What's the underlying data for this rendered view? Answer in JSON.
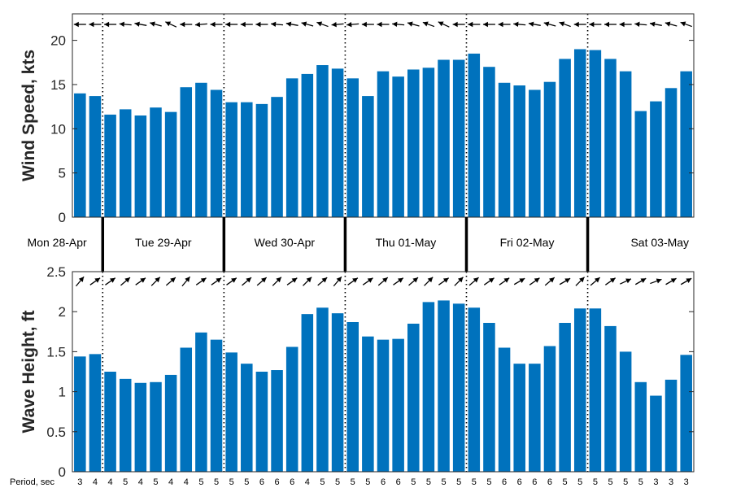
{
  "chart_data": [
    {
      "type": "bar",
      "ylabel": "Wind Speed, kts",
      "ylim": [
        0,
        23
      ],
      "yticks": [
        0,
        5,
        10,
        15,
        20
      ],
      "color": "#0072bd",
      "values": [
        14.0,
        13.7,
        11.6,
        12.2,
        11.5,
        12.4,
        11.9,
        14.7,
        15.2,
        14.4,
        13.0,
        13.0,
        12.8,
        13.6,
        15.7,
        16.2,
        17.2,
        16.8,
        15.7,
        13.7,
        16.5,
        15.9,
        16.7,
        16.9,
        17.8,
        17.8,
        18.5,
        17.0,
        15.2,
        14.9,
        14.4,
        15.3,
        17.9,
        19.0,
        18.9,
        17.9,
        16.5,
        12.0,
        13.1,
        14.6,
        16.5
      ],
      "direction_arrows_deg": [
        180,
        180,
        180,
        185,
        190,
        195,
        205,
        180,
        175,
        180,
        180,
        180,
        180,
        185,
        190,
        195,
        200,
        175,
        175,
        180,
        180,
        185,
        195,
        200,
        205,
        180,
        180,
        180,
        180,
        185,
        190,
        195,
        200,
        180,
        180,
        180,
        180,
        185,
        190,
        195,
        200
      ]
    },
    {
      "type": "bar",
      "ylabel": "Wave Height, ft",
      "ylim": [
        0,
        2.5
      ],
      "yticks": [
        "0",
        "0.5",
        "1",
        "1.5",
        "2",
        "2.5"
      ],
      "color": "#0072bd",
      "values": [
        1.44,
        1.47,
        1.25,
        1.16,
        1.11,
        1.12,
        1.21,
        1.55,
        1.74,
        1.65,
        1.49,
        1.35,
        1.25,
        1.27,
        1.56,
        1.97,
        2.05,
        1.98,
        1.87,
        1.69,
        1.65,
        1.66,
        1.85,
        2.12,
        2.14,
        2.1,
        2.05,
        1.86,
        1.55,
        1.35,
        1.35,
        1.57,
        1.86,
        2.04,
        2.04,
        1.82,
        1.5,
        1.12,
        0.95,
        1.15,
        1.46
      ],
      "direction_arrows_deg": [
        -50,
        -35,
        -35,
        -40,
        -35,
        -45,
        -40,
        -50,
        -35,
        -35,
        -35,
        -40,
        -40,
        -45,
        -35,
        -45,
        -40,
        -50,
        -35,
        -35,
        -40,
        -35,
        -40,
        -45,
        -35,
        -45,
        -40,
        -35,
        -35,
        -30,
        -35,
        -40,
        -30,
        -45,
        -40,
        -35,
        -25,
        -30,
        -20,
        -30,
        -30
      ],
      "period_label": "Period, sec",
      "periods": [
        "3",
        "4",
        "4",
        "5",
        "4",
        "5",
        "4",
        "4",
        "5",
        "5",
        "5",
        "5",
        "6",
        "6",
        "6",
        "4",
        "5",
        "5",
        "5",
        "5",
        "6",
        "6",
        "5",
        "5",
        "5",
        "5",
        "5",
        "5",
        "6",
        "6",
        "6",
        "6",
        "5",
        "5",
        "5",
        "5",
        "5",
        "5",
        "3",
        "3",
        "3"
      ]
    }
  ],
  "days": [
    "Mon 28-Apr",
    "Tue 29-Apr",
    "Wed 30-Apr",
    "Thu 01-May",
    "Fri 02-May",
    "Sat 03-May"
  ],
  "day_boundaries_bar": [
    2,
    10,
    18,
    26,
    34
  ]
}
